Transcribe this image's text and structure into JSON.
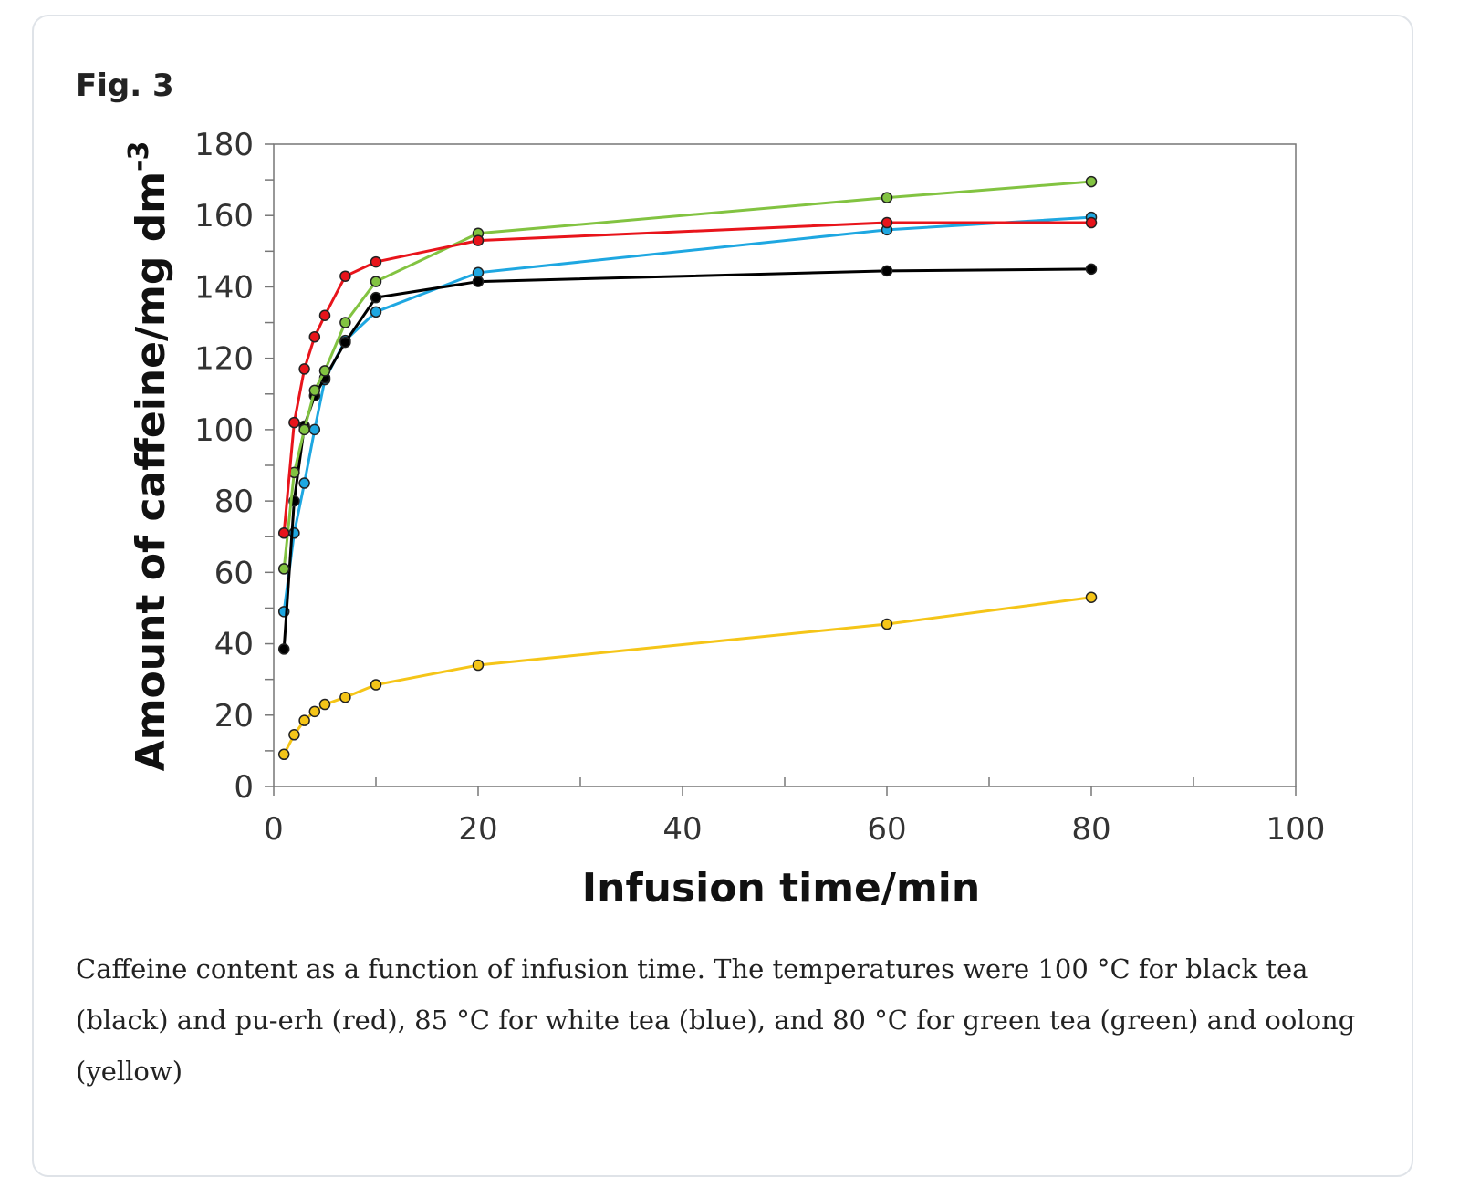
{
  "figure_label": "Fig. 3",
  "caption": "Caffeine content as a function of infusion time. The temperatures were 100 °C for black tea (black) and pu-erh (red), 85 °C for white tea (blue), and 80 °C for green tea (green) and oolong (yellow)",
  "chart_data": {
    "type": "line",
    "title": "",
    "xlabel": "Infusion time/min",
    "ylabel": "Amount of caffeine/mg dm",
    "ylabel_superscript": "-3",
    "xlim": [
      0,
      100
    ],
    "ylim": [
      0,
      180
    ],
    "xticks": [
      0,
      20,
      40,
      60,
      80,
      100
    ],
    "yticks": [
      0,
      20,
      40,
      60,
      80,
      100,
      120,
      140,
      160,
      180
    ],
    "grid": false,
    "x": [
      1,
      2,
      3,
      4,
      5,
      7,
      10,
      20,
      60,
      80
    ],
    "series": [
      {
        "color": "#f5c518",
        "values": [
          9,
          14.5,
          18.5,
          21,
          23,
          25,
          28.5,
          34,
          45.5,
          53
        ]
      },
      {
        "color": "#1ea7e1",
        "values": [
          49,
          71,
          85,
          100,
          114,
          125,
          133,
          144,
          156,
          159.5
        ]
      },
      {
        "color": "#000000",
        "values": [
          38.5,
          80,
          101,
          109.5,
          114.5,
          124.5,
          137,
          141.5,
          144.5,
          145
        ]
      },
      {
        "color": "#82c341",
        "values": [
          61,
          88,
          100,
          111,
          116.5,
          130,
          141.5,
          155,
          165,
          169.5
        ]
      },
      {
        "color": "#e8141b",
        "values": [
          71,
          102,
          117,
          126,
          132,
          143,
          147,
          153,
          158,
          158
        ]
      }
    ]
  }
}
